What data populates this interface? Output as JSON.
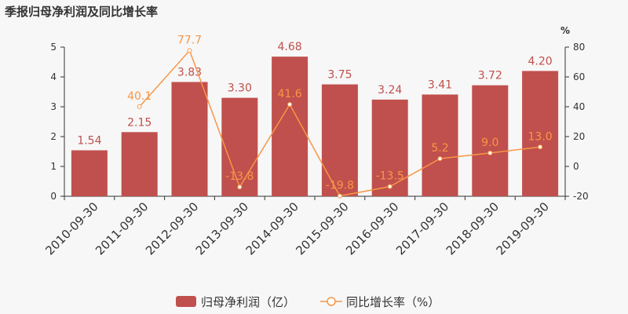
{
  "chart_data": {
    "type": "bar",
    "title": "季报归母净利润及同比增长率",
    "categories": [
      "2010-09-30",
      "2011-09-30",
      "2012-09-30",
      "2013-09-30",
      "2014-09-30",
      "2015-09-30",
      "2016-09-30",
      "2017-09-30",
      "2018-09-30",
      "2019-09-30"
    ],
    "series": [
      {
        "name": "归母净利润（亿）",
        "type": "bar",
        "axis": "left",
        "color": "#c0504d",
        "values": [
          1.54,
          2.15,
          3.83,
          3.3,
          4.68,
          3.75,
          3.24,
          3.41,
          3.72,
          4.2
        ],
        "labels": [
          "1.54",
          "2.15",
          "3.83",
          "3.30",
          "4.68",
          "3.75",
          "3.24",
          "3.41",
          "3.72",
          "4.20"
        ]
      },
      {
        "name": "同比增长率（%）",
        "type": "line",
        "axis": "right",
        "color": "#f79646",
        "values": [
          null,
          40.1,
          77.7,
          -13.8,
          41.6,
          -19.8,
          -13.5,
          5.2,
          9.0,
          13.0
        ],
        "labels": [
          "",
          "40.1",
          "77.7",
          "-13.8",
          "41.6",
          "-19.8",
          "-13.5",
          "5.2",
          "9.0",
          "13.0"
        ]
      }
    ],
    "y_left": {
      "ylim": [
        0,
        5
      ],
      "ticks": [
        0,
        1,
        2,
        3,
        4,
        5
      ],
      "tick_labels": [
        "0",
        "1",
        "2",
        "3",
        "4",
        "5"
      ]
    },
    "y_right": {
      "ylim": [
        -20,
        80
      ],
      "ticks": [
        -20,
        0,
        20,
        40,
        60,
        80
      ],
      "tick_labels": [
        "-20",
        "0",
        "20",
        "40",
        "60",
        "80"
      ],
      "unit": "%"
    },
    "legend": {
      "placement": "bottom-center"
    },
    "grid": false
  }
}
